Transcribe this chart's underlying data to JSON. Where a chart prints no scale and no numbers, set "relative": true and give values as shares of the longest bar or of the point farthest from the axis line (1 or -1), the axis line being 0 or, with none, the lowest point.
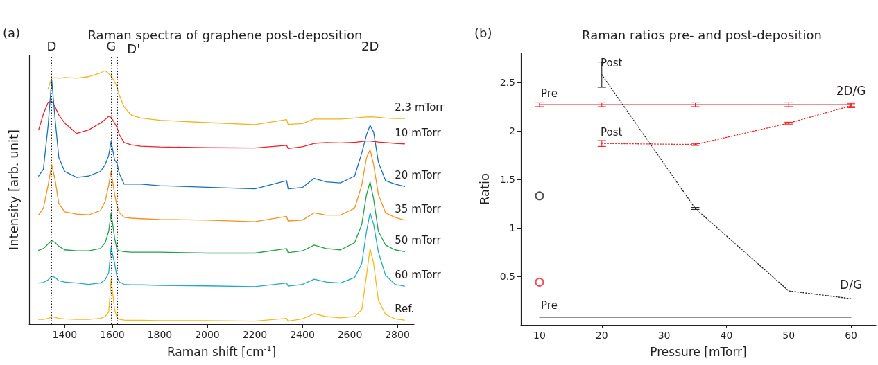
{
  "chart_data": [
    {
      "type": "line",
      "title": "Raman spectra of graphene post-deposition",
      "xlabel": "Raman shift [cm$^{-1}$]",
      "ylabel": "Intensity [arb. unit]",
      "annotations": [
        "(a)"
      ],
      "relative": true,
      "marker": "none",
      "xlim": [
        1250,
        2870
      ],
      "xticks": [
        1400,
        1600,
        1800,
        2000,
        2200,
        2400,
        2600,
        2800
      ],
      "x": [
        1290,
        1310,
        1330,
        1345,
        1360,
        1375,
        1400,
        1450,
        1500,
        1550,
        1570,
        1585,
        1595,
        1610,
        1620,
        1630,
        1650,
        1680,
        1720,
        1800,
        2000,
        2200,
        2334,
        2340,
        2400,
        2450,
        2500,
        2560,
        2620,
        2650,
        2670,
        2685,
        2700,
        2720,
        2750,
        2790,
        2830
      ],
      "series": [
        {
          "name": "2.3 mTorr",
          "color": "#f0b323",
          "values": [
            null,
            null,
            0.929,
            0.97,
            0.972,
            0.97,
            0.973,
            0.97,
            0.976,
            0.991,
            1,
            0.988,
            0.979,
            0.956,
            0.934,
            0.902,
            0.856,
            0.825,
            0.813,
            0.804,
            0.795,
            0.787,
            0.807,
            0.788,
            0.791,
            0.809,
            0.809,
            0.809,
            0.813,
            0.816,
            0.817,
            0.818,
            0.817,
            0.816,
            0.813,
            0.811,
            0.811
          ]
        },
        {
          "name": "10 mTorr",
          "color": "#ee2028",
          "values": [
            0.766,
            0.829,
            0.875,
            0.879,
            0.856,
            0.825,
            0.793,
            0.752,
            0.766,
            0.793,
            0.807,
            0.82,
            0.816,
            0.793,
            0.775,
            0.747,
            0.716,
            0.707,
            0.702,
            0.699,
            0.696,
            0.695,
            0.705,
            0.693,
            0.7,
            0.713,
            0.716,
            0.715,
            0.717,
            0.72,
            0.722,
            0.722,
            0.72,
            0.718,
            0.716,
            0.713,
            0.711
          ]
        },
        {
          "name": "20 mTorr",
          "color": "#1a6fba",
          "values": [
            0.584,
            0.611,
            0.784,
            0.965,
            0.802,
            0.657,
            0.602,
            0.579,
            0.584,
            0.602,
            0.629,
            0.666,
            0.72,
            0.648,
            0.634,
            0.593,
            0.552,
            0.552,
            0.552,
            0.546,
            0.54,
            0.534,
            0.566,
            0.534,
            0.539,
            0.575,
            0.561,
            0.557,
            0.584,
            0.675,
            0.747,
            0.784,
            0.757,
            0.639,
            0.566,
            0.552,
            0.543
          ]
        },
        {
          "name": "35 mTorr",
          "color": "#f7901e",
          "values": [
            0.431,
            0.457,
            0.548,
            0.629,
            0.566,
            0.475,
            0.443,
            0.434,
            0.431,
            0.448,
            0.484,
            0.548,
            0.602,
            0.511,
            0.466,
            0.439,
            0.421,
            0.418,
            0.416,
            0.413,
            0.41,
            0.404,
            0.425,
            0.407,
            0.41,
            0.439,
            0.43,
            0.43,
            0.457,
            0.548,
            0.657,
            0.688,
            0.629,
            0.511,
            0.439,
            0.421,
            0.41
          ]
        },
        {
          "name": "50 mTorr",
          "color": "#21a04a",
          "values": [
            0.291,
            0.298,
            0.316,
            0.33,
            0.321,
            0.307,
            0.293,
            0.289,
            0.289,
            0.298,
            0.321,
            0.366,
            0.439,
            0.339,
            0.293,
            0.289,
            0.286,
            0.284,
            0.284,
            0.284,
            0.28,
            0.28,
            0.298,
            0.282,
            0.289,
            0.312,
            0.298,
            0.293,
            0.321,
            0.393,
            0.511,
            0.561,
            0.493,
            0.366,
            0.312,
            0.293,
            0.286
          ]
        },
        {
          "name": "60 mTorr",
          "color": "#22aac6",
          "values": [
            0.162,
            0.164,
            0.175,
            0.189,
            0.184,
            0.171,
            0.166,
            0.162,
            0.157,
            0.162,
            0.175,
            0.203,
            0.302,
            0.239,
            0.184,
            0.166,
            0.157,
            0.155,
            0.155,
            0.153,
            0.151,
            0.148,
            0.162,
            0.15,
            0.157,
            0.177,
            0.166,
            0.162,
            0.184,
            0.239,
            0.366,
            0.439,
            0.393,
            0.284,
            0.193,
            0.157,
            0.15
          ]
        },
        {
          "name": "Ref.",
          "color": "#f6b81a",
          "values": [
            0.019,
            0.019,
            0.023,
            0.03,
            0.027,
            0.023,
            0.021,
            0.019,
            0.019,
            0.023,
            0.03,
            0.048,
            0.175,
            0.057,
            0.025,
            0.019,
            0.016,
            0.015,
            0.015,
            0.014,
            0.014,
            0.012,
            0.023,
            0.012,
            0.021,
            0.041,
            0.03,
            0.025,
            0.03,
            0.057,
            0.193,
            0.298,
            0.239,
            0.094,
            0.039,
            0.021,
            0.016
          ]
        }
      ],
      "ref_lines": [
        {
          "axis": "x",
          "value": 1345,
          "label": "D",
          "line_style": "dotted",
          "color": "#231f20"
        },
        {
          "axis": "x",
          "value": 1595,
          "label": "G",
          "line_style": "dotted",
          "color": "#231f20"
        },
        {
          "axis": "x",
          "value": 1620,
          "label": "D'",
          "line_style": "dotted",
          "color": "#231f20"
        },
        {
          "axis": "x",
          "value": 2685,
          "label": "2D",
          "line_style": "dotted",
          "color": "#231f20"
        }
      ]
    },
    {
      "type": "line",
      "title": "Raman ratios pre- and post-deposition",
      "xlabel": "Pressure [mTorr]",
      "ylabel": "Ratio",
      "annotations": [
        "(b)",
        {
          "text": "2D/G",
          "x": 60,
          "y": 2.27
        },
        {
          "text": "D/G",
          "x": 60,
          "y": 0.27
        }
      ],
      "marker": "none",
      "xlim": [
        7,
        64
      ],
      "xticks": [
        10,
        20,
        30,
        40,
        50,
        60
      ],
      "ylim": [
        0,
        2.8
      ],
      "yticks": [
        0.5,
        1,
        1.5,
        2,
        2.5
      ],
      "series": [
        {
          "name": "Pre",
          "color": "#e8202a",
          "line_style": "solid",
          "x": [
            10,
            20,
            35,
            50,
            60
          ],
          "values": [
            2.27,
            2.27,
            2.27,
            2.27,
            2.27
          ],
          "errors": [
            0.02,
            0.02,
            0.02,
            0.02,
            0.02
          ]
        },
        {
          "name": "Post",
          "color": "#e8202a",
          "line_style": "dotted",
          "x": [
            20,
            35,
            50,
            60
          ],
          "values": [
            1.87,
            1.86,
            2.08,
            2.26
          ],
          "errors": [
            0.03,
            0.01,
            0.01,
            0.02
          ]
        },
        {
          "name": "Post",
          "color": "#231f20",
          "line_style": "dotted",
          "x": [
            20,
            35,
            50,
            60
          ],
          "values": [
            2.58,
            1.2,
            0.35,
            0.27
          ],
          "errors": [
            [
              2.45,
              2.71
            ],
            0.01,
            null,
            null
          ]
        },
        {
          "name": "Pre",
          "color": "#231f20",
          "line_style": "solid",
          "x": [
            10,
            20,
            35,
            50,
            60
          ],
          "values": [
            0.08,
            0.08,
            0.08,
            0.08,
            0.08
          ]
        },
        {
          "type": "scatter",
          "marker": "circle",
          "color": "#231f20",
          "x": [
            10
          ],
          "values": [
            1.33
          ]
        },
        {
          "type": "scatter",
          "marker": "circle",
          "color": "#e8202a",
          "x": [
            10
          ],
          "values": [
            0.44
          ]
        }
      ]
    }
  ]
}
